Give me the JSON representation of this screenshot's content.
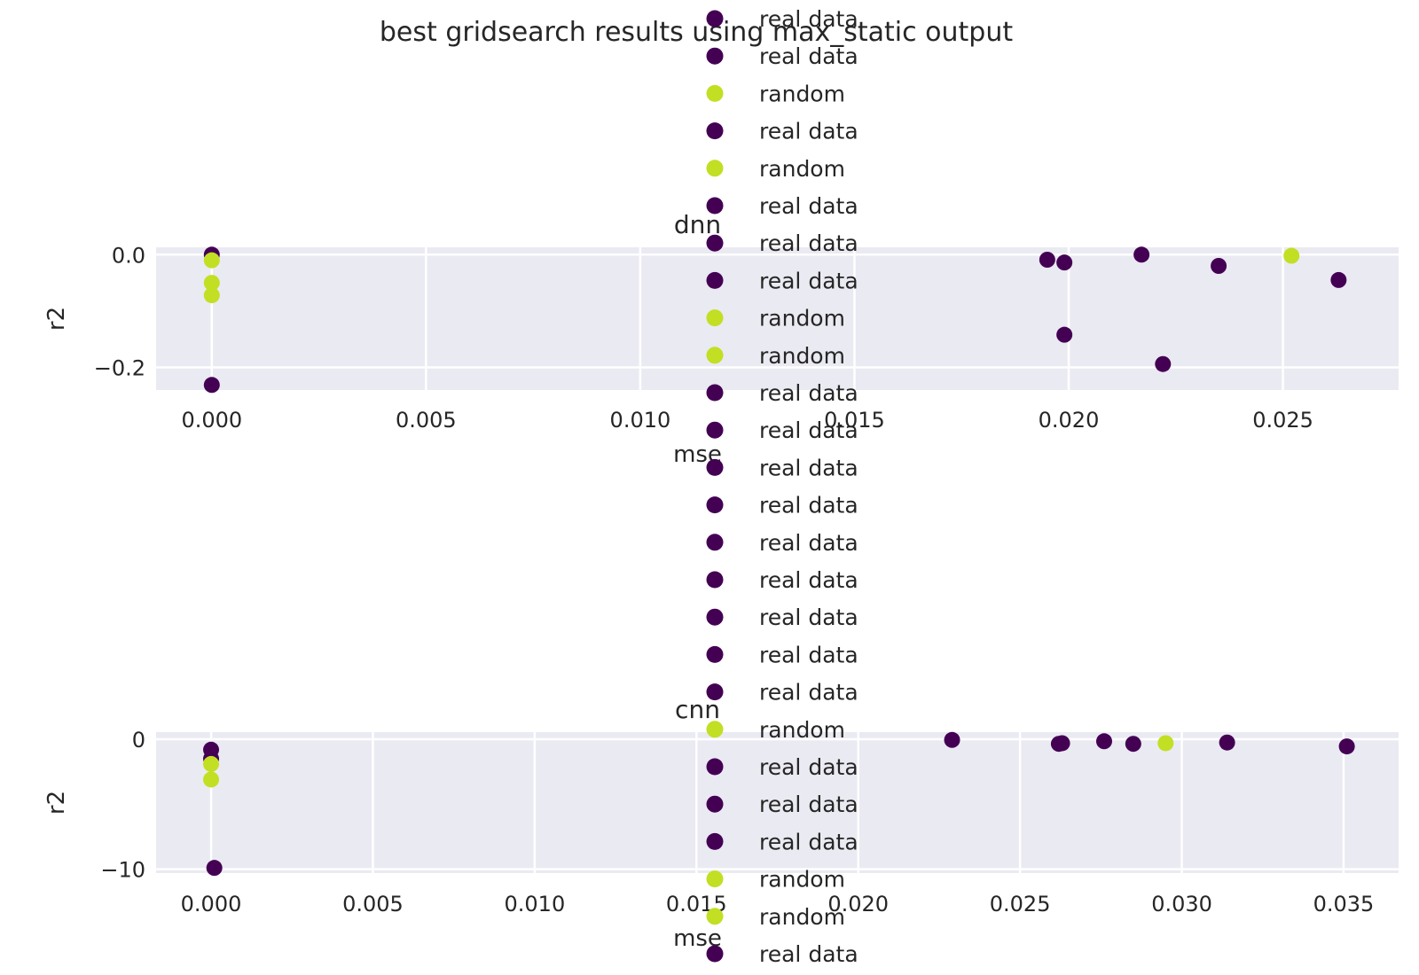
{
  "title": "best gridsearch results using max_static output",
  "colors": {
    "real": "#440154",
    "random": "#c2df23",
    "panel_bg": "#eaeaf2",
    "grid": "#ffffff",
    "text": "#262626"
  },
  "legend": {
    "placement": "upper-center",
    "entries": [
      {
        "label": "real data",
        "group": "real"
      },
      {
        "label": "real data",
        "group": "real"
      },
      {
        "label": "random",
        "group": "random"
      },
      {
        "label": "real data",
        "group": "real"
      },
      {
        "label": "random",
        "group": "random"
      },
      {
        "label": "real data",
        "group": "real"
      },
      {
        "label": "real data",
        "group": "real"
      },
      {
        "label": "real data",
        "group": "real"
      },
      {
        "label": "random",
        "group": "random"
      },
      {
        "label": "random",
        "group": "random"
      },
      {
        "label": "real data",
        "group": "real"
      },
      {
        "label": "real data",
        "group": "real"
      },
      {
        "label": "real data",
        "group": "real"
      },
      {
        "label": "real data",
        "group": "real"
      },
      {
        "label": "real data",
        "group": "real"
      },
      {
        "label": "real data",
        "group": "real"
      },
      {
        "label": "real data",
        "group": "real"
      },
      {
        "label": "real data",
        "group": "real"
      },
      {
        "label": "real data",
        "group": "real"
      },
      {
        "label": "random",
        "group": "random"
      },
      {
        "label": "real data",
        "group": "real"
      },
      {
        "label": "real data",
        "group": "real"
      },
      {
        "label": "real data",
        "group": "real"
      },
      {
        "label": "random",
        "group": "random"
      },
      {
        "label": "random",
        "group": "random"
      },
      {
        "label": "real data",
        "group": "real"
      },
      {
        "label": "real data",
        "group": "real"
      }
    ]
  },
  "chart_data": [
    {
      "type": "scatter",
      "title": "dnn",
      "xlabel": "mse",
      "ylabel": "r2",
      "xlim": [
        -0.0013,
        0.0277
      ],
      "ylim": [
        -0.24,
        0.013
      ],
      "xticks": [
        0.0,
        0.005,
        0.01,
        0.015,
        0.02,
        0.025
      ],
      "xtick_labels": [
        "0.000",
        "0.005",
        "0.010",
        "0.015",
        "0.020",
        "0.025"
      ],
      "yticks": [
        0.0,
        -0.2
      ],
      "ytick_labels": [
        "0.0",
        "−0.2"
      ],
      "grid": true,
      "series": [
        {
          "group": "real",
          "points": [
            [
              0.0,
              0.0
            ],
            [
              0.0,
              -0.231
            ],
            [
              0.0195,
              -0.009
            ],
            [
              0.0199,
              -0.014
            ],
            [
              0.0217,
              0.0
            ],
            [
              0.0235,
              -0.02
            ],
            [
              0.0263,
              -0.045
            ],
            [
              0.0199,
              -0.142
            ],
            [
              0.0222,
              -0.194
            ]
          ]
        },
        {
          "group": "random",
          "points": [
            [
              0.0,
              -0.01
            ],
            [
              0.0,
              -0.05
            ],
            [
              0.0,
              -0.072
            ],
            [
              0.0252,
              -0.002
            ]
          ]
        }
      ]
    },
    {
      "type": "scatter",
      "title": "cnn",
      "xlabel": "mse",
      "ylabel": "r2",
      "xlim": [
        -0.0017,
        0.0367
      ],
      "ylim": [
        -10.3,
        0.55
      ],
      "xticks": [
        0.0,
        0.005,
        0.01,
        0.015,
        0.02,
        0.025,
        0.03,
        0.035
      ],
      "xtick_labels": [
        "0.000",
        "0.005",
        "0.010",
        "0.015",
        "0.020",
        "0.025",
        "0.030",
        "0.035"
      ],
      "yticks": [
        0,
        -10
      ],
      "ytick_labels": [
        "0",
        "−10"
      ],
      "grid": true,
      "series": [
        {
          "group": "real",
          "points": [
            [
              0.0,
              -0.8
            ],
            [
              0.0,
              -1.5
            ],
            [
              0.0001,
              -9.9
            ],
            [
              0.0229,
              -0.05
            ],
            [
              0.0262,
              -0.35
            ],
            [
              0.0263,
              -0.3
            ],
            [
              0.0276,
              -0.15
            ],
            [
              0.0285,
              -0.35
            ],
            [
              0.0314,
              -0.25
            ],
            [
              0.0351,
              -0.55
            ]
          ]
        },
        {
          "group": "random",
          "points": [
            [
              0.0,
              -1.9
            ],
            [
              0.0,
              -3.1
            ],
            [
              0.0295,
              -0.3
            ]
          ]
        }
      ]
    }
  ]
}
